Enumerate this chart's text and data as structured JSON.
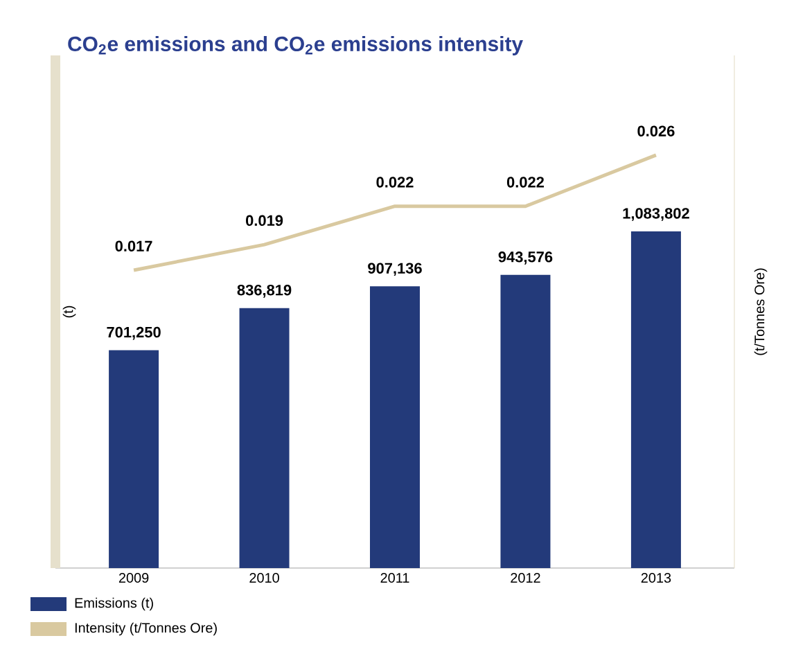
{
  "chart_data": {
    "type": "bar",
    "title": "CO$_{2}$e emissions and CO$_{2}$e emissions intensity",
    "ylabel": "(t)",
    "y2label": "(t/Tonnes Ore)",
    "categories": [
      "2009",
      "2010",
      "2011",
      "2012",
      "2013"
    ],
    "ylim": [
      0,
      1650000
    ],
    "y2lim": [
      -0.0063,
      0.0338
    ],
    "legend": "bottom",
    "series": [
      {
        "name": "Emissions (t)",
        "color": "#233a7a",
        "values": [
          701250,
          836819,
          907136,
          943576,
          1083802
        ],
        "value_labels": [
          "701,250",
          "836,819",
          "907,136",
          "943,576",
          "1,083,802"
        ]
      },
      {
        "name": "Intensity (t/Tonnes Ore)",
        "type": "line",
        "axis": "y2",
        "color": "#d9c9a0",
        "values": [
          0.017,
          0.019,
          0.022,
          0.022,
          0.026
        ],
        "value_labels": [
          "0.017",
          "0.019",
          "0.022",
          "0.022",
          "0.026"
        ]
      }
    ]
  }
}
